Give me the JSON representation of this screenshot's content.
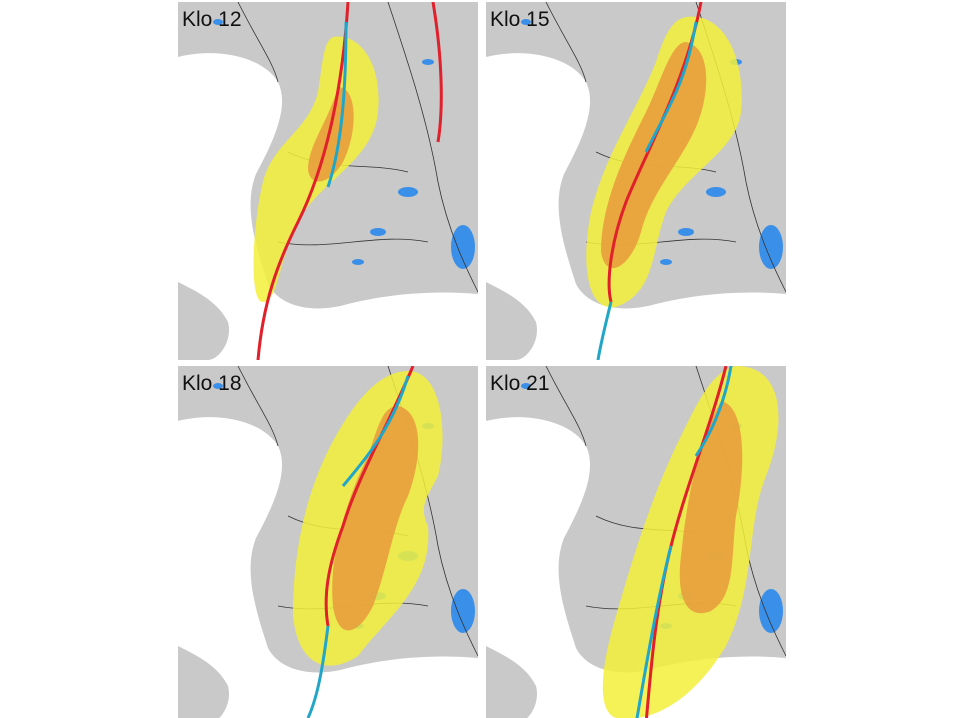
{
  "panels": [
    {
      "label": "Klo 12"
    },
    {
      "label": "Klo 15"
    },
    {
      "label": "Klo 18"
    },
    {
      "label": "Klo 21"
    }
  ]
}
